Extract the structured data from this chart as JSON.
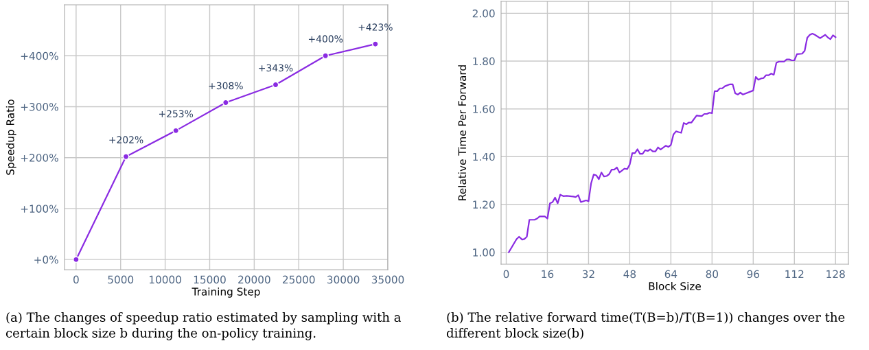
{
  "chart_data": [
    {
      "type": "line",
      "xlabel": "Training Step",
      "ylabel": "Speedup Ratio",
      "x": [
        0,
        5600,
        11200,
        16800,
        22400,
        28000,
        33600
      ],
      "series": [
        {
          "color": "#8a2be2",
          "values": [
            0,
            202,
            253,
            308,
            343,
            400,
            423
          ],
          "value_labels": [
            null,
            "+202%",
            "+253%",
            "+308%",
            "+343%",
            "+400%",
            "+423%"
          ]
        }
      ],
      "xlim": [
        -1300,
        35000
      ],
      "xticks": [
        0,
        5000,
        10000,
        15000,
        20000,
        25000,
        30000,
        35000
      ],
      "ylim": [
        -20,
        500
      ],
      "yticks": [
        {
          "value": 0,
          "label": "+0%"
        },
        {
          "value": 100,
          "label": "+100%"
        },
        {
          "value": 200,
          "label": "+200%"
        },
        {
          "value": 300,
          "label": "+300%"
        },
        {
          "value": 400,
          "label": "+400%"
        }
      ],
      "grid": true,
      "marker": "circle",
      "line_style": "solid",
      "annotations": [
        "(a) The changes of speedup ratio estimated by sampling with a certain block size b during the on-policy training."
      ]
    },
    {
      "type": "line",
      "xlabel": "Block Size",
      "ylabel": "Relative Time Per Forward",
      "x": [
        1,
        4,
        5,
        6.2,
        7,
        8,
        9,
        11,
        12,
        13,
        15,
        16,
        17,
        18,
        19,
        20,
        21,
        22.2,
        23.5,
        26,
        27,
        28,
        29,
        31,
        32,
        33,
        34,
        35,
        36,
        37,
        38,
        39,
        40,
        41,
        42,
        43,
        44,
        46,
        47,
        48,
        49,
        50,
        51,
        52,
        53,
        54,
        55,
        56,
        57,
        58,
        59,
        60,
        62,
        63,
        64,
        65,
        66,
        67,
        68,
        69,
        70,
        71,
        72,
        74,
        76,
        77,
        78,
        79,
        80,
        81,
        82,
        83,
        84,
        85,
        87,
        88,
        89,
        90,
        91,
        92,
        96,
        97,
        98,
        99,
        100,
        101,
        102,
        103,
        104,
        105,
        106,
        108,
        109,
        110,
        111,
        112,
        113,
        115,
        116,
        117,
        118,
        119,
        120,
        122,
        124,
        125,
        126,
        127,
        128
      ],
      "series": [
        {
          "color": "#8a2be2",
          "values": [
            1.0,
            1.055,
            1.065,
            1.053,
            1.055,
            1.065,
            1.136,
            1.136,
            1.141,
            1.15,
            1.15,
            1.141,
            1.205,
            1.21,
            1.229,
            1.205,
            1.241,
            1.235,
            1.236,
            1.233,
            1.231,
            1.239,
            1.21,
            1.217,
            1.214,
            1.289,
            1.325,
            1.322,
            1.306,
            1.334,
            1.317,
            1.319,
            1.327,
            1.346,
            1.346,
            1.355,
            1.334,
            1.35,
            1.348,
            1.367,
            1.415,
            1.415,
            1.431,
            1.412,
            1.412,
            1.427,
            1.424,
            1.431,
            1.422,
            1.422,
            1.439,
            1.43,
            1.446,
            1.441,
            1.449,
            1.493,
            1.506,
            1.503,
            1.5,
            1.541,
            1.536,
            1.543,
            1.543,
            1.572,
            1.57,
            1.579,
            1.579,
            1.584,
            1.582,
            1.674,
            1.674,
            1.686,
            1.686,
            1.695,
            1.703,
            1.703,
            1.665,
            1.66,
            1.668,
            1.66,
            1.677,
            1.734,
            1.722,
            1.727,
            1.729,
            1.741,
            1.741,
            1.748,
            1.743,
            1.793,
            1.798,
            1.798,
            1.807,
            1.807,
            1.803,
            1.803,
            1.829,
            1.831,
            1.843,
            1.898,
            1.91,
            1.915,
            1.91,
            1.896,
            1.91,
            1.899,
            1.892,
            1.908,
            1.9
          ]
        }
      ],
      "xlim": [
        -2,
        133
      ],
      "xticks": [
        0,
        16,
        32,
        48,
        64,
        80,
        96,
        112,
        128
      ],
      "ylim": [
        0.95,
        2.05
      ],
      "yticks": [
        {
          "value": 1,
          "label": "1.00"
        },
        {
          "value": 1.2,
          "label": "1.20"
        },
        {
          "value": 1.4,
          "label": "1.40"
        },
        {
          "value": 1.6,
          "label": "1.60"
        },
        {
          "value": 1.8,
          "label": "1.80"
        },
        {
          "value": 2,
          "label": "2.00"
        }
      ],
      "grid": true,
      "line_style": "solid",
      "annotations": [
        "(b) The relative forward time(T(B=b)/T(B=1)) changes over the different block size(b)"
      ]
    }
  ]
}
